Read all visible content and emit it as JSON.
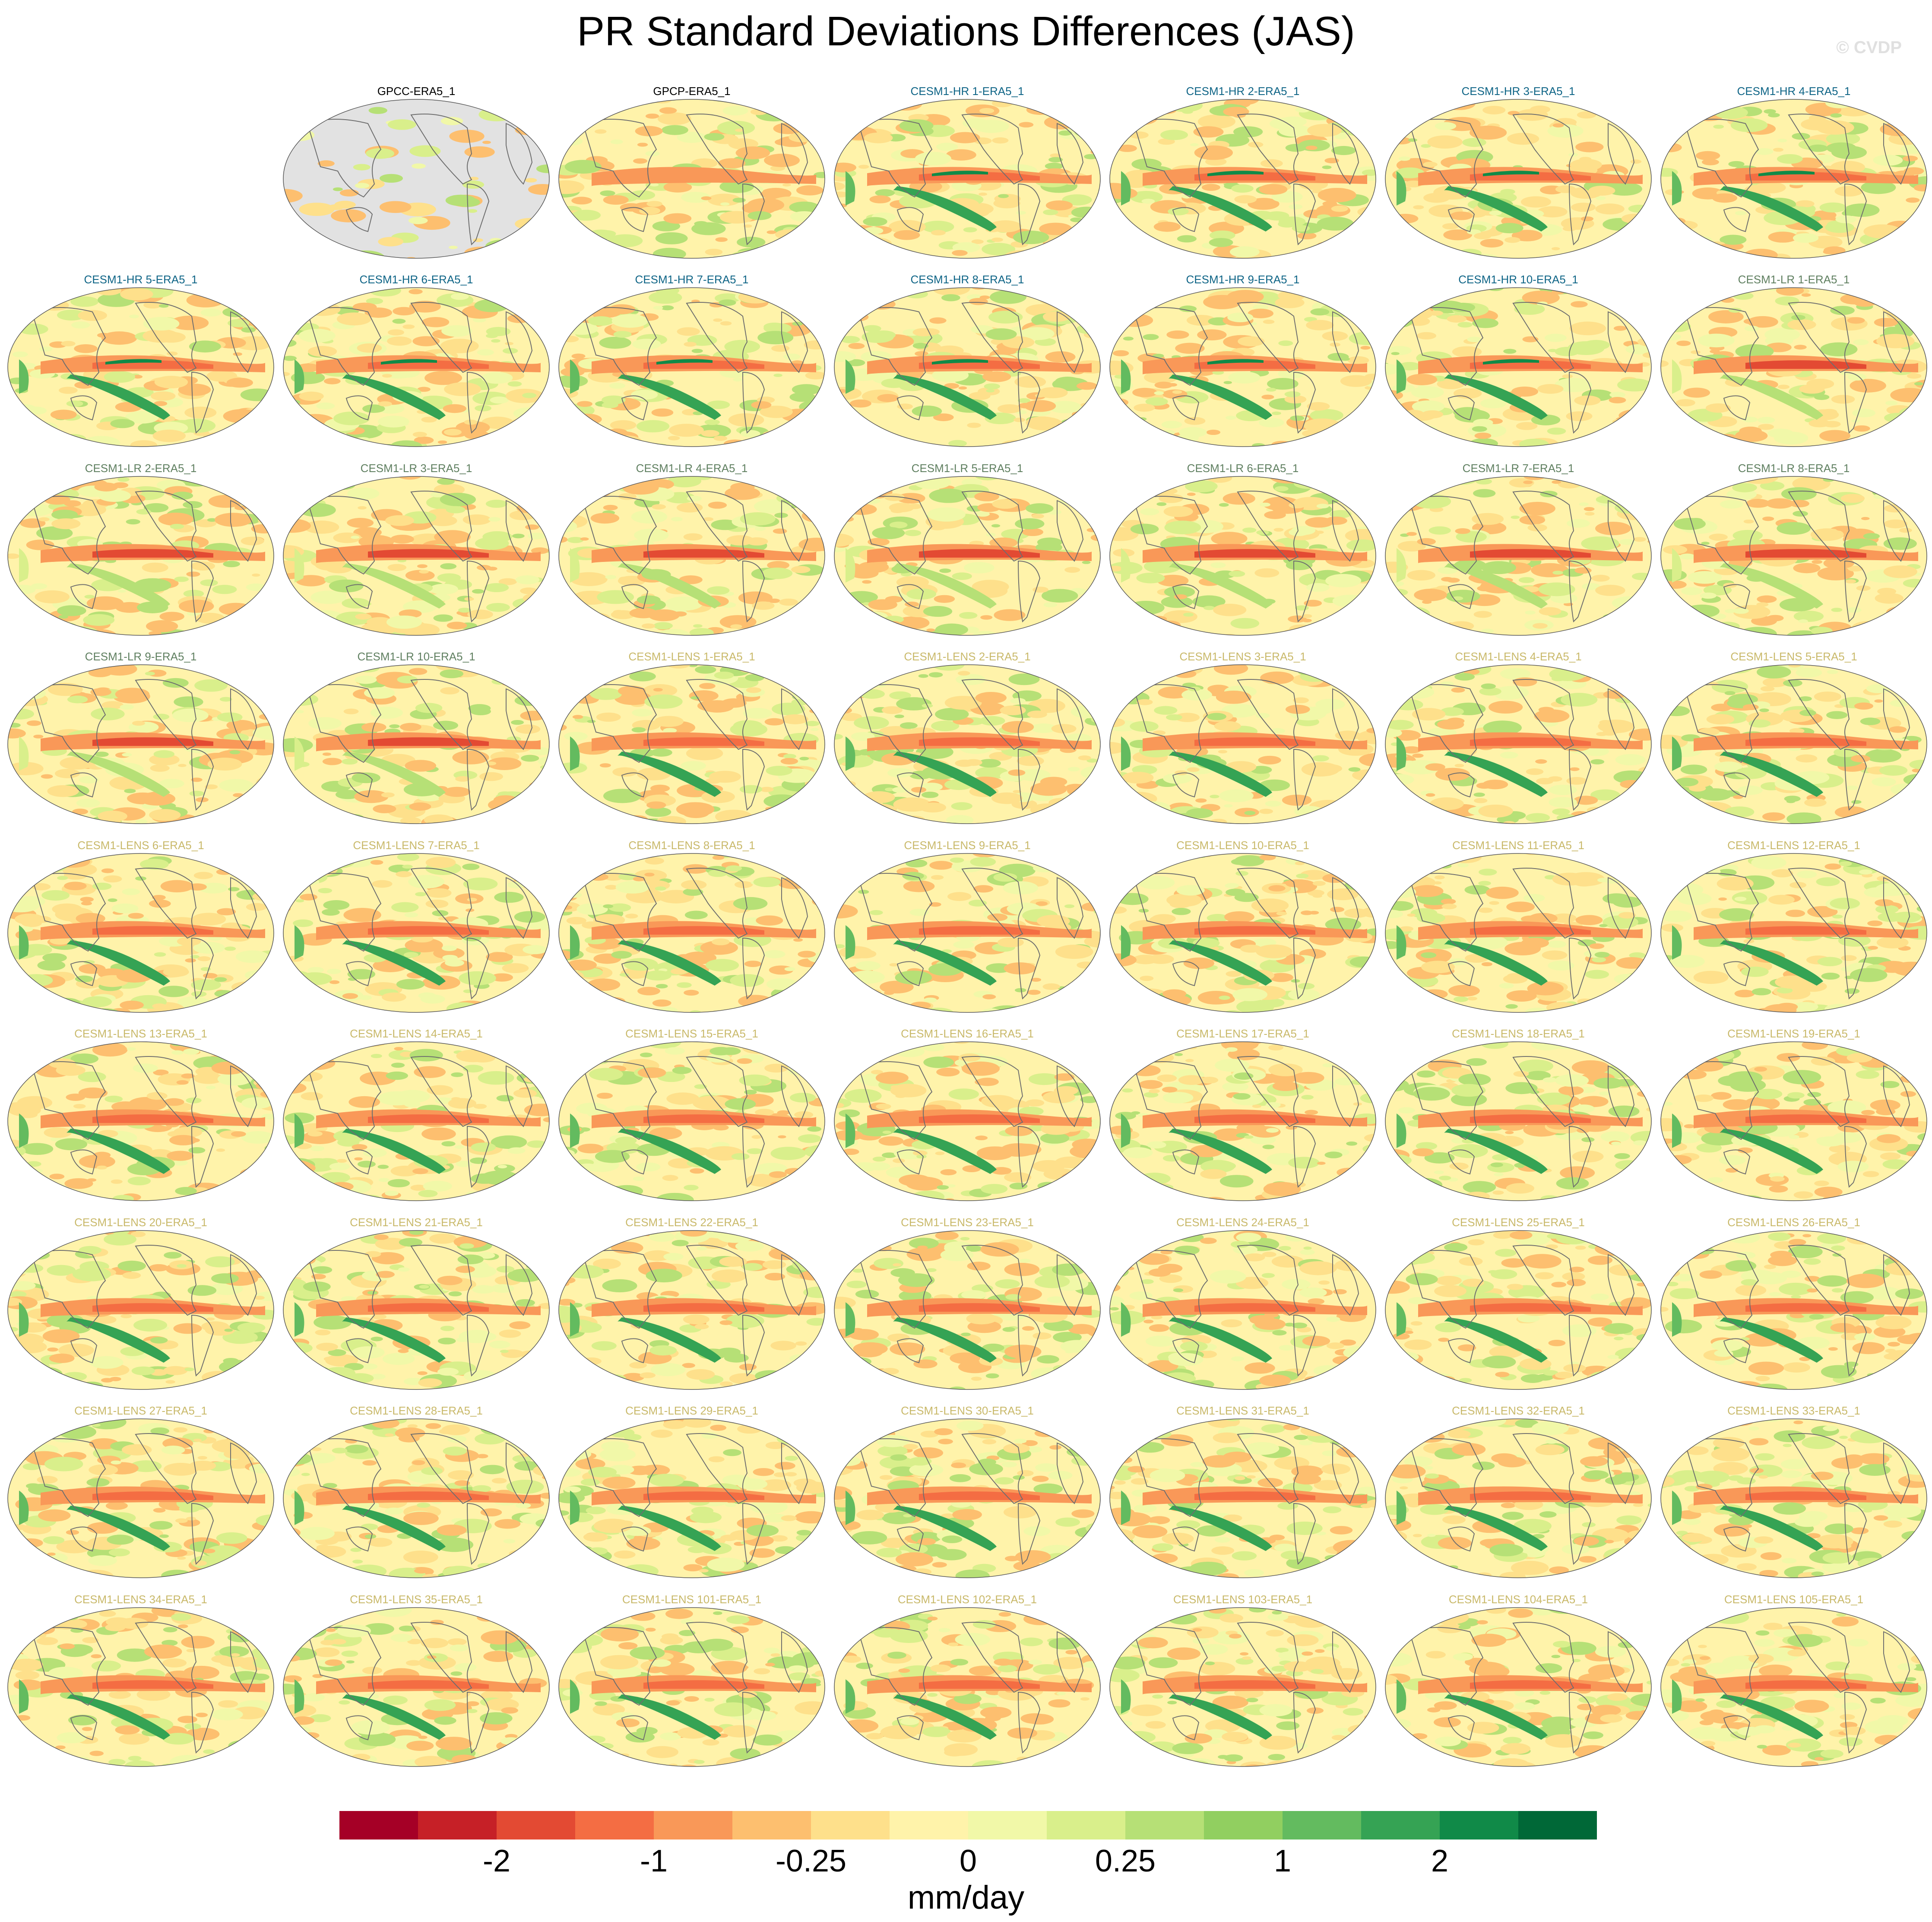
{
  "title": "PR Standard Deviations Differences (JAS)",
  "watermark": "© CVDP",
  "group_colors": {
    "obs": "#000000",
    "hr": "#0e6486",
    "lr": "#5f7f60",
    "lens": "#c9b96a"
  },
  "missing_color": "#e2e2e2",
  "chart_data": {
    "type": "heatmap",
    "title": "PR Standard Deviations Differences (JAS)",
    "panels": [
      {
        "label": "GPCC-ERA5_1",
        "group": "obs"
      },
      {
        "label": "GPCP-ERA5_1",
        "group": "obs"
      },
      {
        "label": "CESM1-HR 1-ERA5_1",
        "group": "hr"
      },
      {
        "label": "CESM1-HR 2-ERA5_1",
        "group": "hr"
      },
      {
        "label": "CESM1-HR 3-ERA5_1",
        "group": "hr"
      },
      {
        "label": "CESM1-HR 4-ERA5_1",
        "group": "hr"
      },
      {
        "label": "CESM1-HR 5-ERA5_1",
        "group": "hr"
      },
      {
        "label": "CESM1-HR 6-ERA5_1",
        "group": "hr"
      },
      {
        "label": "CESM1-HR 7-ERA5_1",
        "group": "hr"
      },
      {
        "label": "CESM1-HR 8-ERA5_1",
        "group": "hr"
      },
      {
        "label": "CESM1-HR 9-ERA5_1",
        "group": "hr"
      },
      {
        "label": "CESM1-HR 10-ERA5_1",
        "group": "hr"
      },
      {
        "label": "CESM1-LR 1-ERA5_1",
        "group": "lr"
      },
      {
        "label": "CESM1-LR 2-ERA5_1",
        "group": "lr"
      },
      {
        "label": "CESM1-LR 3-ERA5_1",
        "group": "lr"
      },
      {
        "label": "CESM1-LR 4-ERA5_1",
        "group": "lr"
      },
      {
        "label": "CESM1-LR 5-ERA5_1",
        "group": "lr"
      },
      {
        "label": "CESM1-LR 6-ERA5_1",
        "group": "lr"
      },
      {
        "label": "CESM1-LR 7-ERA5_1",
        "group": "lr"
      },
      {
        "label": "CESM1-LR 8-ERA5_1",
        "group": "lr"
      },
      {
        "label": "CESM1-LR 9-ERA5_1",
        "group": "lr"
      },
      {
        "label": "CESM1-LR 10-ERA5_1",
        "group": "lr"
      },
      {
        "label": "CESM1-LENS 1-ERA5_1",
        "group": "lens"
      },
      {
        "label": "CESM1-LENS 2-ERA5_1",
        "group": "lens"
      },
      {
        "label": "CESM1-LENS 3-ERA5_1",
        "group": "lens"
      },
      {
        "label": "CESM1-LENS 4-ERA5_1",
        "group": "lens"
      },
      {
        "label": "CESM1-LENS 5-ERA5_1",
        "group": "lens"
      },
      {
        "label": "CESM1-LENS 6-ERA5_1",
        "group": "lens"
      },
      {
        "label": "CESM1-LENS 7-ERA5_1",
        "group": "lens"
      },
      {
        "label": "CESM1-LENS 8-ERA5_1",
        "group": "lens"
      },
      {
        "label": "CESM1-LENS 9-ERA5_1",
        "group": "lens"
      },
      {
        "label": "CESM1-LENS 10-ERA5_1",
        "group": "lens"
      },
      {
        "label": "CESM1-LENS 11-ERA5_1",
        "group": "lens"
      },
      {
        "label": "CESM1-LENS 12-ERA5_1",
        "group": "lens"
      },
      {
        "label": "CESM1-LENS 13-ERA5_1",
        "group": "lens"
      },
      {
        "label": "CESM1-LENS 14-ERA5_1",
        "group": "lens"
      },
      {
        "label": "CESM1-LENS 15-ERA5_1",
        "group": "lens"
      },
      {
        "label": "CESM1-LENS 16-ERA5_1",
        "group": "lens"
      },
      {
        "label": "CESM1-LENS 17-ERA5_1",
        "group": "lens"
      },
      {
        "label": "CESM1-LENS 18-ERA5_1",
        "group": "lens"
      },
      {
        "label": "CESM1-LENS 19-ERA5_1",
        "group": "lens"
      },
      {
        "label": "CESM1-LENS 20-ERA5_1",
        "group": "lens"
      },
      {
        "label": "CESM1-LENS 21-ERA5_1",
        "group": "lens"
      },
      {
        "label": "CESM1-LENS 22-ERA5_1",
        "group": "lens"
      },
      {
        "label": "CESM1-LENS 23-ERA5_1",
        "group": "lens"
      },
      {
        "label": "CESM1-LENS 24-ERA5_1",
        "group": "lens"
      },
      {
        "label": "CESM1-LENS 25-ERA5_1",
        "group": "lens"
      },
      {
        "label": "CESM1-LENS 26-ERA5_1",
        "group": "lens"
      },
      {
        "label": "CESM1-LENS 27-ERA5_1",
        "group": "lens"
      },
      {
        "label": "CESM1-LENS 28-ERA5_1",
        "group": "lens"
      },
      {
        "label": "CESM1-LENS 29-ERA5_1",
        "group": "lens"
      },
      {
        "label": "CESM1-LENS 30-ERA5_1",
        "group": "lens"
      },
      {
        "label": "CESM1-LENS 31-ERA5_1",
        "group": "lens"
      },
      {
        "label": "CESM1-LENS 32-ERA5_1",
        "group": "lens"
      },
      {
        "label": "CESM1-LENS 33-ERA5_1",
        "group": "lens"
      },
      {
        "label": "CESM1-LENS 34-ERA5_1",
        "group": "lens"
      },
      {
        "label": "CESM1-LENS 35-ERA5_1",
        "group": "lens"
      },
      {
        "label": "CESM1-LENS 101-ERA5_1",
        "group": "lens"
      },
      {
        "label": "CESM1-LENS 102-ERA5_1",
        "group": "lens"
      },
      {
        "label": "CESM1-LENS 103-ERA5_1",
        "group": "lens"
      },
      {
        "label": "CESM1-LENS 104-ERA5_1",
        "group": "lens"
      },
      {
        "label": "CESM1-LENS 105-ERA5_1",
        "group": "lens"
      }
    ],
    "colorbar": {
      "colors": [
        "#a50026",
        "#c62027",
        "#e34a33",
        "#f46d43",
        "#f99858",
        "#fdbf6f",
        "#fee08b",
        "#fff3aa",
        "#f1f8a8",
        "#d9ef8b",
        "#b6e076",
        "#91cf60",
        "#63bb5f",
        "#35a354",
        "#108a48",
        "#006837"
      ],
      "tick_labels": [
        "-2",
        "-1",
        "-0.25",
        "0",
        "0.25",
        "1",
        "2"
      ],
      "units": "mm/day"
    }
  }
}
